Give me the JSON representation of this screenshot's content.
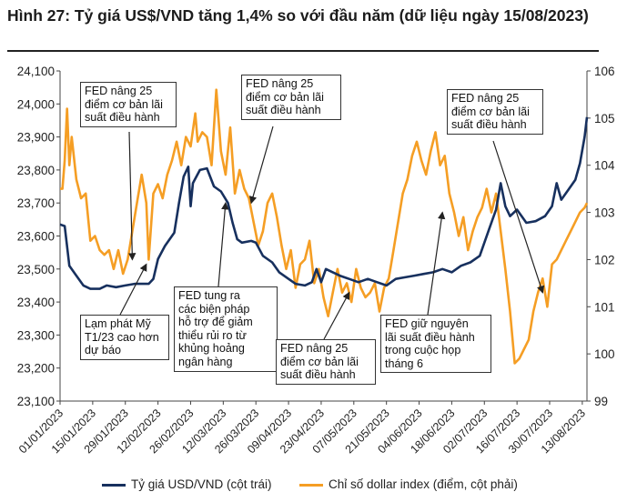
{
  "title": "Hình 27: Tỷ giá US$/VND tăng 1,4% so với đầu năm (dữ liệu ngày 15/08/2023)",
  "colors": {
    "usd_vnd": "#17305e",
    "dxy": "#f59e24",
    "axis": "#444444"
  },
  "chart_data": {
    "type": "line",
    "x_start": "01/01/2023",
    "x_end": "15/08/2023",
    "x_ticks": [
      "01/01/2023",
      "15/01/2023",
      "29/01/2023",
      "12/02/2023",
      "26/02/2023",
      "12/03/2023",
      "26/03/2023",
      "09/04/2023",
      "23/04/2023",
      "07/05/2023",
      "21/05/2023",
      "04/06/2023",
      "18/06/2023",
      "02/07/2023",
      "16/07/2023",
      "30/07/2023",
      "13/08/2023"
    ],
    "y_left": {
      "ticks": [
        "23,100",
        "23,200",
        "23,300",
        "23,400",
        "23,500",
        "23,600",
        "23,700",
        "23,800",
        "23,900",
        "24,000",
        "24,100"
      ],
      "ylim": [
        23100,
        24100
      ]
    },
    "y_right": {
      "ticks": [
        "99",
        "100",
        "101",
        "102",
        "103",
        "104",
        "105",
        "106"
      ],
      "ylim": [
        99,
        106
      ]
    },
    "grid": false,
    "legend_position": "bottom",
    "series": [
      {
        "name": "Tỷ giá USD/VND (cột trái)",
        "axis": "left",
        "points": [
          [
            "01/01/2023",
            23635
          ],
          [
            "03/01/2023",
            23630
          ],
          [
            "05/01/2023",
            23510
          ],
          [
            "08/01/2023",
            23480
          ],
          [
            "11/01/2023",
            23450
          ],
          [
            "14/01/2023",
            23440
          ],
          [
            "18/01/2023",
            23440
          ],
          [
            "21/01/2023",
            23450
          ],
          [
            "25/01/2023",
            23445
          ],
          [
            "29/01/2023",
            23450
          ],
          [
            "02/02/2023",
            23455
          ],
          [
            "05/02/2023",
            23455
          ],
          [
            "08/02/2023",
            23455
          ],
          [
            "10/02/2023",
            23470
          ],
          [
            "12/02/2023",
            23530
          ],
          [
            "15/02/2023",
            23570
          ],
          [
            "17/02/2023",
            23590
          ],
          [
            "19/02/2023",
            23610
          ],
          [
            "21/02/2023",
            23700
          ],
          [
            "23/02/2023",
            23780
          ],
          [
            "25/02/2023",
            23810
          ],
          [
            "26/02/2023",
            23690
          ],
          [
            "27/02/2023",
            23760
          ],
          [
            "02/03/2023",
            23800
          ],
          [
            "05/03/2023",
            23805
          ],
          [
            "08/03/2023",
            23750
          ],
          [
            "11/03/2023",
            23735
          ],
          [
            "14/03/2023",
            23700
          ],
          [
            "16/03/2023",
            23640
          ],
          [
            "18/03/2023",
            23590
          ],
          [
            "20/03/2023",
            23580
          ],
          [
            "24/03/2023",
            23585
          ],
          [
            "26/03/2023",
            23580
          ],
          [
            "29/03/2023",
            23540
          ],
          [
            "02/04/2023",
            23520
          ],
          [
            "05/04/2023",
            23490
          ],
          [
            "09/04/2023",
            23470
          ],
          [
            "12/04/2023",
            23455
          ],
          [
            "16/04/2023",
            23450
          ],
          [
            "19/04/2023",
            23460
          ],
          [
            "21/04/2023",
            23500
          ],
          [
            "23/04/2023",
            23460
          ],
          [
            "25/04/2023",
            23500
          ],
          [
            "28/04/2023",
            23490
          ],
          [
            "01/05/2023",
            23480
          ],
          [
            "05/05/2023",
            23470
          ],
          [
            "09/05/2023",
            23460
          ],
          [
            "13/05/2023",
            23470
          ],
          [
            "17/05/2023",
            23460
          ],
          [
            "21/05/2023",
            23450
          ],
          [
            "25/05/2023",
            23470
          ],
          [
            "29/05/2023",
            23475
          ],
          [
            "02/06/2023",
            23480
          ],
          [
            "06/06/2023",
            23485
          ],
          [
            "10/06/2023",
            23490
          ],
          [
            "14/06/2023",
            23500
          ],
          [
            "18/06/2023",
            23490
          ],
          [
            "22/06/2023",
            23510
          ],
          [
            "26/06/2023",
            23520
          ],
          [
            "30/06/2023",
            23540
          ],
          [
            "04/07/2023",
            23620
          ],
          [
            "07/07/2023",
            23680
          ],
          [
            "09/07/2023",
            23760
          ],
          [
            "11/07/2023",
            23690
          ],
          [
            "13/07/2023",
            23660
          ],
          [
            "16/07/2023",
            23680
          ],
          [
            "20/07/2023",
            23640
          ],
          [
            "24/07/2023",
            23645
          ],
          [
            "28/07/2023",
            23660
          ],
          [
            "31/07/2023",
            23690
          ],
          [
            "02/08/2023",
            23760
          ],
          [
            "04/08/2023",
            23710
          ],
          [
            "07/08/2023",
            23740
          ],
          [
            "10/08/2023",
            23770
          ],
          [
            "12/08/2023",
            23820
          ],
          [
            "14/08/2023",
            23900
          ],
          [
            "15/08/2023",
            23960
          ]
        ]
      },
      {
        "name": "Chỉ số dollar index (điểm, cột phải)",
        "axis": "right",
        "points": [
          [
            "01/01/2023",
            103.5
          ],
          [
            "02/01/2023",
            103.5
          ],
          [
            "03/01/2023",
            104.1
          ],
          [
            "04/01/2023",
            105.2
          ],
          [
            "05/01/2023",
            104.0
          ],
          [
            "06/01/2023",
            104.6
          ],
          [
            "08/01/2023",
            103.7
          ],
          [
            "10/01/2023",
            103.3
          ],
          [
            "12/01/2023",
            103.4
          ],
          [
            "14/01/2023",
            102.4
          ],
          [
            "16/01/2023",
            102.5
          ],
          [
            "18/01/2023",
            102.2
          ],
          [
            "20/01/2023",
            102.1
          ],
          [
            "22/01/2023",
            102.2
          ],
          [
            "24/01/2023",
            101.8
          ],
          [
            "26/01/2023",
            102.2
          ],
          [
            "28/01/2023",
            101.7
          ],
          [
            "30/01/2023",
            102.0
          ],
          [
            "01/02/2023",
            102.6
          ],
          [
            "03/02/2023",
            103.2
          ],
          [
            "05/02/2023",
            103.8
          ],
          [
            "07/02/2023",
            103.2
          ],
          [
            "08/02/2023",
            102.0
          ],
          [
            "10/02/2023",
            103.4
          ],
          [
            "12/02/2023",
            103.6
          ],
          [
            "14/02/2023",
            103.3
          ],
          [
            "16/02/2023",
            103.8
          ],
          [
            "18/02/2023",
            104.1
          ],
          [
            "20/02/2023",
            104.5
          ],
          [
            "22/02/2023",
            104.0
          ],
          [
            "24/02/2023",
            104.6
          ],
          [
            "26/02/2023",
            104.4
          ],
          [
            "28/02/2023",
            105.1
          ],
          [
            "01/03/2023",
            104.5
          ],
          [
            "03/03/2023",
            104.7
          ],
          [
            "05/03/2023",
            104.6
          ],
          [
            "07/03/2023",
            104.0
          ],
          [
            "09/03/2023",
            105.6
          ],
          [
            "11/03/2023",
            104.3
          ],
          [
            "13/03/2023",
            103.8
          ],
          [
            "15/03/2023",
            104.8
          ],
          [
            "17/03/2023",
            103.4
          ],
          [
            "19/03/2023",
            103.9
          ],
          [
            "21/03/2023",
            103.5
          ],
          [
            "23/03/2023",
            103.3
          ],
          [
            "25/03/2023",
            102.8
          ],
          [
            "27/03/2023",
            102.3
          ],
          [
            "29/03/2023",
            102.6
          ],
          [
            "31/03/2023",
            103.2
          ],
          [
            "02/04/2023",
            103.4
          ],
          [
            "04/04/2023",
            102.9
          ],
          [
            "06/04/2023",
            102.3
          ],
          [
            "08/04/2023",
            101.8
          ],
          [
            "10/04/2023",
            102.2
          ],
          [
            "12/04/2023",
            101.4
          ],
          [
            "14/04/2023",
            101.9
          ],
          [
            "16/04/2023",
            102.0
          ],
          [
            "18/04/2023",
            102.4
          ],
          [
            "20/04/2023",
            101.5
          ],
          [
            "22/04/2023",
            101.8
          ],
          [
            "24/04/2023",
            101.2
          ],
          [
            "26/04/2023",
            100.8
          ],
          [
            "28/04/2023",
            101.3
          ],
          [
            "30/04/2023",
            101.8
          ],
          [
            "02/05/2023",
            101.3
          ],
          [
            "04/05/2023",
            101.5
          ],
          [
            "06/05/2023",
            101.1
          ],
          [
            "08/05/2023",
            101.8
          ],
          [
            "10/05/2023",
            101.4
          ],
          [
            "12/05/2023",
            101.2
          ],
          [
            "14/05/2023",
            101.3
          ],
          [
            "16/05/2023",
            101.5
          ],
          [
            "18/05/2023",
            100.9
          ],
          [
            "20/05/2023",
            101.4
          ],
          [
            "22/05/2023",
            101.6
          ],
          [
            "24/05/2023",
            102.2
          ],
          [
            "26/05/2023",
            102.8
          ],
          [
            "28/05/2023",
            103.4
          ],
          [
            "30/05/2023",
            103.7
          ],
          [
            "01/06/2023",
            104.2
          ],
          [
            "03/06/2023",
            104.5
          ],
          [
            "05/06/2023",
            104.1
          ],
          [
            "07/06/2023",
            103.8
          ],
          [
            "09/06/2023",
            104.3
          ],
          [
            "11/06/2023",
            104.7
          ],
          [
            "13/06/2023",
            104.0
          ],
          [
            "15/06/2023",
            104.2
          ],
          [
            "17/06/2023",
            103.4
          ],
          [
            "19/06/2023",
            103.0
          ],
          [
            "21/06/2023",
            102.5
          ],
          [
            "23/06/2023",
            102.9
          ],
          [
            "25/06/2023",
            102.2
          ],
          [
            "27/06/2023",
            102.6
          ],
          [
            "29/06/2023",
            102.9
          ],
          [
            "01/07/2023",
            103.1
          ],
          [
            "03/07/2023",
            103.5
          ],
          [
            "05/07/2023",
            103.0
          ],
          [
            "07/07/2023",
            103.4
          ],
          [
            "09/07/2023",
            102.6
          ],
          [
            "11/07/2023",
            101.8
          ],
          [
            "13/07/2023",
            100.9
          ],
          [
            "15/07/2023",
            99.8
          ],
          [
            "17/07/2023",
            99.9
          ],
          [
            "19/07/2023",
            100.1
          ],
          [
            "21/07/2023",
            100.3
          ],
          [
            "23/07/2023",
            100.9
          ],
          [
            "25/07/2023",
            101.3
          ],
          [
            "27/07/2023",
            101.6
          ],
          [
            "29/07/2023",
            101.0
          ],
          [
            "31/07/2023",
            101.9
          ],
          [
            "02/08/2023",
            102.0
          ],
          [
            "04/08/2023",
            102.2
          ],
          [
            "06/08/2023",
            102.4
          ],
          [
            "08/08/2023",
            102.6
          ],
          [
            "10/08/2023",
            102.8
          ],
          [
            "12/08/2023",
            103.0
          ],
          [
            "14/08/2023",
            103.1
          ],
          [
            "15/08/2023",
            103.2
          ]
        ]
      }
    ],
    "annotations": [
      {
        "id": "fed-feb",
        "text": [
          "FED nâng 25",
          "điểm cơ bản lãi",
          "suất điều hành"
        ],
        "target": [
          "01/02/2023",
          102.0
        ]
      },
      {
        "id": "cpi",
        "text": [
          "Lạm phát Mỹ",
          "T1/23 cao hơn",
          "dự báo"
        ],
        "target": [
          "07/02/2023",
          101.9
        ]
      },
      {
        "id": "fed-support",
        "text": [
          "FED tung ra",
          "các biện pháp",
          "hỗ trợ để giảm",
          "thiểu rủi ro từ",
          "khủng hoảng",
          "ngân hàng"
        ],
        "target": [
          "13/03/2023",
          103.2
        ]
      },
      {
        "id": "fed-mar",
        "text": [
          "FED nâng 25",
          "điểm cơ bản lãi",
          "suất điều hành"
        ],
        "target": [
          "24/03/2023",
          103.2
        ]
      },
      {
        "id": "fed-may",
        "text": [
          "FED nâng 25",
          "điểm cơ bản lãi",
          "suất điều hành"
        ],
        "target": [
          "05/05/2023",
          101.3
        ]
      },
      {
        "id": "fed-jun",
        "text": [
          "FED giữ nguyên",
          "lãi suất điều hành",
          "trong cuộc họp",
          "tháng 6"
        ],
        "target": [
          "14/06/2023",
          103.0
        ]
      },
      {
        "id": "fed-jul",
        "text": [
          "FED nâng 25",
          "điểm cơ bản lãi",
          "suất điều hành"
        ],
        "target": [
          "27/07/2023",
          101.3
        ]
      }
    ]
  }
}
